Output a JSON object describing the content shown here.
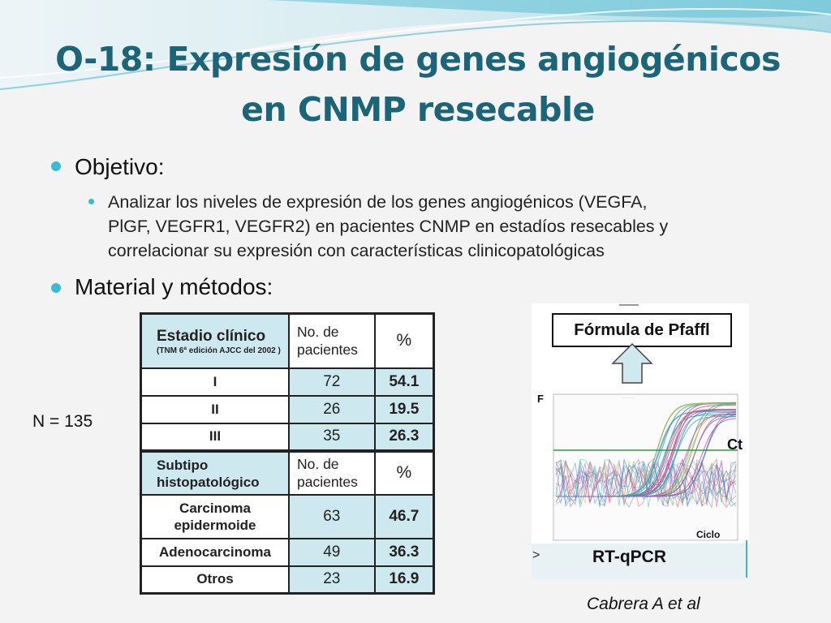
{
  "title": {
    "line1": "O-18: Expresión de genes angiogénicos",
    "line2": "en CNMP resecable"
  },
  "bullets": {
    "objective": "Objetivo:",
    "objective_text": {
      "line1": "Analizar los niveles de expresión de los genes angiogénicos (VEGFA,",
      "line2": "PlGF, VEGFR1, VEGFR2) en pacientes CNMP en estadíos resecables y",
      "line3": "correlacionar su expresión con características clinicopatológicas"
    },
    "methods": "Material y métodos:"
  },
  "n_label": "N = 135",
  "table": {
    "stage": {
      "header": "Estadio clínico",
      "header_note": "(TNM 6ª edición AJCC del 2002 )",
      "col_n": "No. de pacientes",
      "col_pct": "%",
      "rows": [
        {
          "label": "I",
          "n": "72",
          "pct": "54.1"
        },
        {
          "label": "II",
          "n": "26",
          "pct": "19.5"
        },
        {
          "label": "III",
          "n": "35",
          "pct": "26.3"
        }
      ]
    },
    "subtype": {
      "header": "Subtipo histopatológico",
      "col_n": "No. de pacientes",
      "col_pct": "%",
      "rows": [
        {
          "label": "Carcinoma epidermoide",
          "n": "63",
          "pct": "46.7"
        },
        {
          "label": "Adenocarcinoma",
          "n": "49",
          "pct": "36.3"
        },
        {
          "label": "Otros",
          "n": "23",
          "pct": "16.9"
        }
      ]
    }
  },
  "figure": {
    "formula": "Fórmula de Pfaffl",
    "ct_label": "Ct",
    "y_label": "F",
    "x_label": "Ciclo",
    "method": "RT-qPCR"
  },
  "credit": "Cabrera A et al",
  "colors": {
    "title": "#1c6578",
    "bullet": "#3bbad3",
    "table_fill": "#cde9ef",
    "threshold": "#2a9d3a"
  }
}
